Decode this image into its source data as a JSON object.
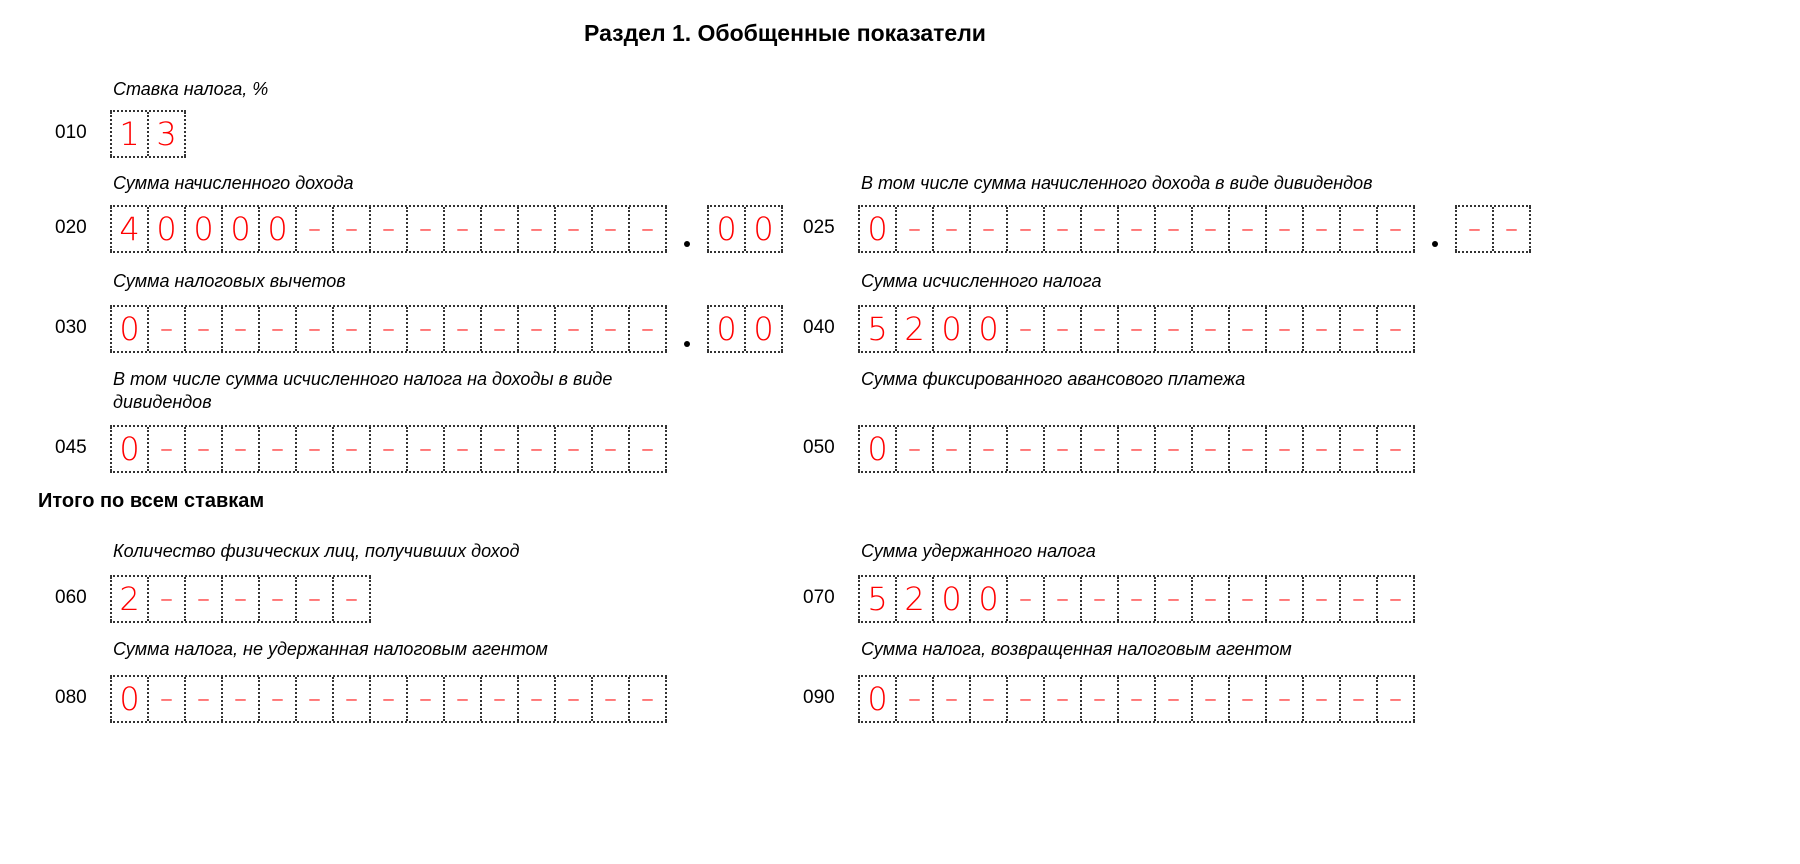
{
  "title": "Раздел 1. Обобщенные показатели",
  "section_total": "Итого по всем ставкам",
  "fields": {
    "f010": {
      "code": "010",
      "label": "Ставка налога, %",
      "cells": [
        "1",
        "3"
      ]
    },
    "f020": {
      "code": "020",
      "label": "Сумма начисленного дохода",
      "cells": [
        "4",
        "0",
        "0",
        "0",
        "0",
        "–",
        "–",
        "–",
        "–",
        "–",
        "–",
        "–",
        "–",
        "–",
        "–"
      ],
      "fraction": [
        "0",
        "0"
      ]
    },
    "f025": {
      "code": "025",
      "label": "В том числе сумма начисленного дохода в виде дивидендов",
      "cells": [
        "0",
        "–",
        "–",
        "–",
        "–",
        "–",
        "–",
        "–",
        "–",
        "–",
        "–",
        "–",
        "–",
        "–",
        "–"
      ],
      "fraction": [
        "–",
        "–"
      ]
    },
    "f030": {
      "code": "030",
      "label": "Сумма налоговых вычетов",
      "cells": [
        "0",
        "–",
        "–",
        "–",
        "–",
        "–",
        "–",
        "–",
        "–",
        "–",
        "–",
        "–",
        "–",
        "–",
        "–"
      ],
      "fraction": [
        "0",
        "0"
      ]
    },
    "f040": {
      "code": "040",
      "label": "Сумма исчисленного налога",
      "cells": [
        "5",
        "2",
        "0",
        "0",
        "–",
        "–",
        "–",
        "–",
        "–",
        "–",
        "–",
        "–",
        "–",
        "–",
        "–"
      ]
    },
    "f045": {
      "code": "045",
      "label": "В том числе сумма исчисленного налога на доходы в виде дивидендов",
      "cells": [
        "0",
        "–",
        "–",
        "–",
        "–",
        "–",
        "–",
        "–",
        "–",
        "–",
        "–",
        "–",
        "–",
        "–",
        "–"
      ]
    },
    "f050": {
      "code": "050",
      "label": "Сумма фиксированного авансового платежа",
      "cells": [
        "0",
        "–",
        "–",
        "–",
        "–",
        "–",
        "–",
        "–",
        "–",
        "–",
        "–",
        "–",
        "–",
        "–",
        "–"
      ]
    },
    "f060": {
      "code": "060",
      "label": "Количество физических лиц, получивших доход",
      "cells": [
        "2",
        "–",
        "–",
        "–",
        "–",
        "–",
        "–"
      ]
    },
    "f070": {
      "code": "070",
      "label": "Сумма удержанного налога",
      "cells": [
        "5",
        "2",
        "0",
        "0",
        "–",
        "–",
        "–",
        "–",
        "–",
        "–",
        "–",
        "–",
        "–",
        "–",
        "–"
      ]
    },
    "f080": {
      "code": "080",
      "label": "Сумма налога, не удержанная налоговым агентом",
      "cells": [
        "0",
        "–",
        "–",
        "–",
        "–",
        "–",
        "–",
        "–",
        "–",
        "–",
        "–",
        "–",
        "–",
        "–",
        "–"
      ]
    },
    "f090": {
      "code": "090",
      "label": "Сумма налога, возвращенная налоговым агентом",
      "cells": [
        "0",
        "–",
        "–",
        "–",
        "–",
        "–",
        "–",
        "–",
        "–",
        "–",
        "–",
        "–",
        "–",
        "–",
        "–"
      ]
    }
  }
}
